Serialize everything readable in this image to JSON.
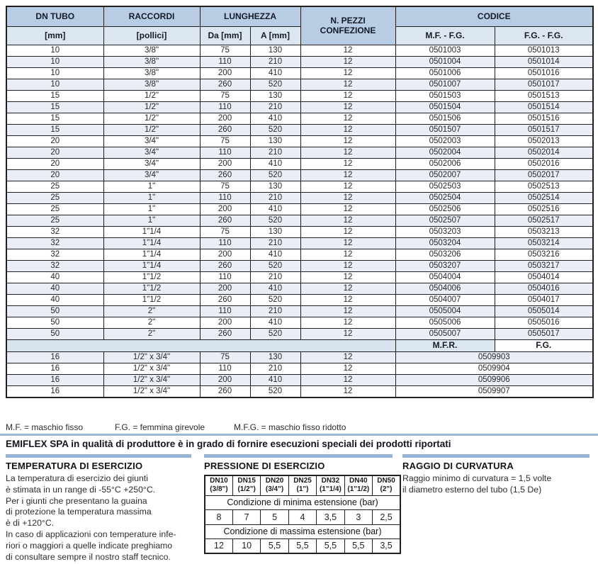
{
  "colors": {
    "header_blue": "#b8cce4",
    "header_light_blue": "#dce6f1",
    "row_tint": "#e9eef7",
    "subheader_tint": "#d9e3f0",
    "bar_blue": "#95b3d7",
    "rule_blue": "#9cb6d8",
    "border": "#1f1f1f"
  },
  "main_table": {
    "header": {
      "dn_tubo": "DN TUBO",
      "dn_tubo_unit": "[mm]",
      "raccordi": "RACCORDI",
      "raccordi_unit": "[pollici]",
      "lunghezza": "LUNGHEZZA",
      "lunghezza_da": "Da [mm]",
      "lunghezza_a": "A [mm]",
      "n_pezzi": [
        "N. PEZZI",
        "CONFEZIONE"
      ],
      "codice": "CODICE",
      "codice_mf_fg": "M.F. - F.G.",
      "codice_fg_fg": "F.G. - F.G."
    },
    "rows": [
      [
        "10",
        "3/8\"",
        "75",
        "130",
        "12",
        "0501003",
        "0501013"
      ],
      [
        "10",
        "3/8\"",
        "110",
        "210",
        "12",
        "0501004",
        "0501014"
      ],
      [
        "10",
        "3/8\"",
        "200",
        "410",
        "12",
        "0501006",
        "0501016"
      ],
      [
        "10",
        "3/8\"",
        "260",
        "520",
        "12",
        "0501007",
        "0501017"
      ],
      [
        "15",
        "1/2\"",
        "75",
        "130",
        "12",
        "0501503",
        "0501513"
      ],
      [
        "15",
        "1/2\"",
        "110",
        "210",
        "12",
        "0501504",
        "0501514"
      ],
      [
        "15",
        "1/2\"",
        "200",
        "410",
        "12",
        "0501506",
        "0501516"
      ],
      [
        "15",
        "1/2\"",
        "260",
        "520",
        "12",
        "0501507",
        "0501517"
      ],
      [
        "20",
        "3/4\"",
        "75",
        "130",
        "12",
        "0502003",
        "0502013"
      ],
      [
        "20",
        "3/4\"",
        "110",
        "210",
        "12",
        "0502004",
        "0502014"
      ],
      [
        "20",
        "3/4\"",
        "200",
        "410",
        "12",
        "0502006",
        "0502016"
      ],
      [
        "20",
        "3/4\"",
        "260",
        "520",
        "12",
        "0502007",
        "0502017"
      ],
      [
        "25",
        "1\"",
        "75",
        "130",
        "12",
        "0502503",
        "0502513"
      ],
      [
        "25",
        "1\"",
        "110",
        "210",
        "12",
        "0502504",
        "0502514"
      ],
      [
        "25",
        "1\"",
        "200",
        "410",
        "12",
        "0502506",
        "0502516"
      ],
      [
        "25",
        "1\"",
        "260",
        "520",
        "12",
        "0502507",
        "0502517"
      ],
      [
        "32",
        "1\"1/4",
        "75",
        "130",
        "12",
        "0503203",
        "0503213"
      ],
      [
        "32",
        "1\"1/4",
        "110",
        "210",
        "12",
        "0503204",
        "0503214"
      ],
      [
        "32",
        "1\"1/4",
        "200",
        "410",
        "12",
        "0503206",
        "0503216"
      ],
      [
        "32",
        "1\"1/4",
        "260",
        "520",
        "12",
        "0503207",
        "0503217"
      ],
      [
        "40",
        "1\"1/2",
        "110",
        "210",
        "12",
        "0504004",
        "0504014"
      ],
      [
        "40",
        "1\"1/2",
        "200",
        "410",
        "12",
        "0504006",
        "0504016"
      ],
      [
        "40",
        "1\"1/2",
        "260",
        "520",
        "12",
        "0504007",
        "0504017"
      ],
      [
        "50",
        "2\"",
        "110",
        "210",
        "12",
        "0505004",
        "0505014"
      ],
      [
        "50",
        "2\"",
        "200",
        "410",
        "12",
        "0505006",
        "0505016"
      ],
      [
        "50",
        "2\"",
        "260",
        "520",
        "12",
        "0505007",
        "0505017"
      ]
    ],
    "subheader": {
      "mfr": "M.F.R.",
      "fg": "F.G."
    },
    "rows_reduced": [
      [
        "16",
        "1/2\" x 3/4\"",
        "75",
        "130",
        "12",
        "0509903"
      ],
      [
        "16",
        "1/2\" x 3/4\"",
        "110",
        "210",
        "12",
        "0509904"
      ],
      [
        "16",
        "1/2\" x 3/4\"",
        "200",
        "410",
        "12",
        "0509906"
      ],
      [
        "16",
        "1/2\" x 3/4\"",
        "260",
        "520",
        "12",
        "0509907"
      ]
    ]
  },
  "legend": {
    "mf": "M.F. = maschio fisso",
    "fg": "F.G. = femmina girevole",
    "mfg": "M.F.G. = maschio fisso ridotto"
  },
  "note": "EMIFLEX SPA in qualità di produttore è in grado di fornire esecuzioni speciali dei prodotti riportati",
  "sections": {
    "temperatura": {
      "title": "TEMPERATURA DI ESERCIZIO",
      "body": [
        "La temperatura di esercizio dei giunti",
        "è stimata in un range di -55°C +250°C.",
        "Per i giunti che presentano la guaina",
        "di protezione la temperatura massima",
        "è di +120°C.",
        "In caso di applicazioni con temperature infe-",
        "riori o maggiori a quelle indicate preghiamo",
        "di consultare sempre il nostro staff tecnico."
      ]
    },
    "pressione": {
      "title": "PRESSIONE DI ESERCIZIO",
      "columns": [
        {
          "dn": "DN10",
          "size": "(3/8\")"
        },
        {
          "dn": "DN15",
          "size": "(1/2\")"
        },
        {
          "dn": "DN20",
          "size": "(3/4\")"
        },
        {
          "dn": "DN25",
          "size": "(1\")"
        },
        {
          "dn": "DN32",
          "size": "(1\"1/4)"
        },
        {
          "dn": "DN40",
          "size": "(1\"1/2)"
        },
        {
          "dn": "DN50",
          "size": "(2\")"
        }
      ],
      "min_label": "Condizione di minima estensione (bar)",
      "min_values": [
        "8",
        "7",
        "5",
        "4",
        "3,5",
        "3",
        "2,5"
      ],
      "max_label": "Condizione di massima estensione (bar)",
      "max_values": [
        "12",
        "10",
        "5,5",
        "5,5",
        "5,5",
        "5,5",
        "3,5"
      ]
    },
    "raggio": {
      "title": "RAGGIO DI CURVATURA",
      "body": [
        "Raggio minimo di curvatura = 1,5 volte",
        "il diametro esterno del tubo (1,5 De)"
      ]
    }
  }
}
